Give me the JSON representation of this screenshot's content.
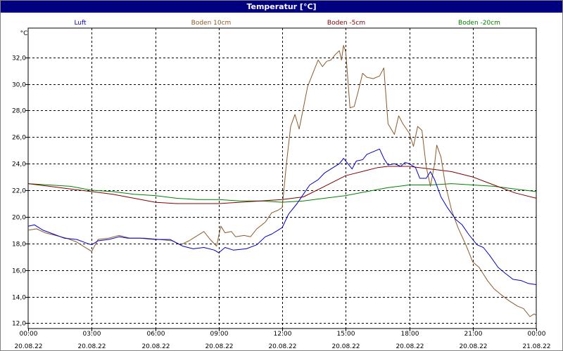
{
  "window": {
    "title": "Temperatur [°C]"
  },
  "chart_data": {
    "type": "line",
    "title": "Temperatur [°C]",
    "ylabel": "°C",
    "ylim": [
      11.6,
      34.2
    ],
    "yticks": [
      "12,0",
      "14,0",
      "16,0",
      "18,0",
      "20,0",
      "22,0",
      "24,0",
      "26,0",
      "28,0",
      "30,0",
      "32,0"
    ],
    "ytick_values": [
      12,
      14,
      16,
      18,
      20,
      22,
      24,
      26,
      28,
      30,
      32
    ],
    "xlim": [
      0,
      24
    ],
    "xticks": [
      {
        "x": 0,
        "time": "00:00",
        "date": "20.08.22"
      },
      {
        "x": 3,
        "time": "03:00",
        "date": "20.08.22"
      },
      {
        "x": 6,
        "time": "06:00",
        "date": "20.08.22"
      },
      {
        "x": 9,
        "time": "09:00",
        "date": "20.08.22"
      },
      {
        "x": 12,
        "time": "12:00",
        "date": "20.08.22"
      },
      {
        "x": 15,
        "time": "15:00",
        "date": "20.08.22"
      },
      {
        "x": 18,
        "time": "18:00",
        "date": "20.08.22"
      },
      {
        "x": 21,
        "time": "21:00",
        "date": "20.08.22"
      },
      {
        "x": 24,
        "time": "00:00",
        "date": "21.08.22"
      }
    ],
    "grid": true,
    "legend_placement": "top",
    "series": [
      {
        "name": "Luft",
        "color": "#0000c0",
        "points": [
          [
            0,
            19.3
          ],
          [
            0.3,
            19.4
          ],
          [
            0.7,
            19.0
          ],
          [
            1.2,
            18.7
          ],
          [
            1.7,
            18.4
          ],
          [
            2.3,
            18.3
          ],
          [
            2.8,
            18.0
          ],
          [
            3.0,
            17.9
          ],
          [
            3.3,
            18.2
          ],
          [
            3.8,
            18.3
          ],
          [
            4.3,
            18.5
          ],
          [
            4.7,
            18.4
          ],
          [
            5.3,
            18.4
          ],
          [
            6.0,
            18.3
          ],
          [
            6.7,
            18.3
          ],
          [
            7.3,
            17.8
          ],
          [
            7.8,
            17.6
          ],
          [
            8.3,
            17.7
          ],
          [
            8.8,
            17.5
          ],
          [
            9.0,
            17.3
          ],
          [
            9.3,
            17.7
          ],
          [
            9.7,
            17.5
          ],
          [
            10.3,
            17.6
          ],
          [
            10.8,
            17.9
          ],
          [
            11.2,
            18.5
          ],
          [
            11.5,
            18.7
          ],
          [
            11.8,
            19.0
          ],
          [
            12.0,
            19.2
          ],
          [
            12.3,
            20.2
          ],
          [
            12.7,
            21.0
          ],
          [
            13.0,
            21.7
          ],
          [
            13.3,
            22.4
          ],
          [
            13.7,
            22.8
          ],
          [
            14.0,
            23.3
          ],
          [
            14.3,
            23.6
          ],
          [
            14.7,
            24.0
          ],
          [
            14.9,
            24.4
          ],
          [
            15.1,
            24.0
          ],
          [
            15.3,
            23.6
          ],
          [
            15.5,
            24.2
          ],
          [
            15.8,
            24.3
          ],
          [
            16.0,
            24.7
          ],
          [
            16.3,
            24.9
          ],
          [
            16.6,
            25.1
          ],
          [
            16.8,
            24.4
          ],
          [
            17.0,
            23.9
          ],
          [
            17.3,
            24.0
          ],
          [
            17.6,
            23.8
          ],
          [
            17.8,
            24.1
          ],
          [
            18.0,
            24.0
          ],
          [
            18.3,
            23.7
          ],
          [
            18.5,
            22.9
          ],
          [
            18.8,
            22.9
          ],
          [
            19.0,
            23.4
          ],
          [
            19.2,
            22.8
          ],
          [
            19.5,
            21.5
          ],
          [
            19.8,
            20.7
          ],
          [
            20.2,
            19.8
          ],
          [
            20.5,
            19.4
          ],
          [
            20.8,
            18.7
          ],
          [
            21.2,
            17.9
          ],
          [
            21.5,
            17.7
          ],
          [
            21.8,
            17.1
          ],
          [
            22.2,
            16.2
          ],
          [
            22.5,
            15.8
          ],
          [
            22.9,
            15.3
          ],
          [
            23.3,
            15.2
          ],
          [
            23.6,
            15.0
          ],
          [
            24.0,
            14.9
          ]
        ]
      },
      {
        "name": "Boden 10cm",
        "color": "#8b5a2b",
        "points": [
          [
            0,
            19.0
          ],
          [
            0.4,
            19.1
          ],
          [
            0.8,
            18.8
          ],
          [
            1.3,
            18.6
          ],
          [
            1.8,
            18.4
          ],
          [
            2.3,
            18.1
          ],
          [
            2.8,
            17.6
          ],
          [
            3.0,
            17.4
          ],
          [
            3.3,
            18.3
          ],
          [
            3.8,
            18.4
          ],
          [
            4.3,
            18.6
          ],
          [
            4.8,
            18.4
          ],
          [
            5.5,
            18.4
          ],
          [
            6.2,
            18.3
          ],
          [
            6.8,
            18.2
          ],
          [
            7.2,
            17.9
          ],
          [
            7.6,
            18.2
          ],
          [
            8.0,
            18.6
          ],
          [
            8.3,
            18.9
          ],
          [
            8.6,
            18.3
          ],
          [
            8.9,
            17.8
          ],
          [
            9.1,
            19.3
          ],
          [
            9.3,
            18.8
          ],
          [
            9.6,
            18.9
          ],
          [
            9.8,
            18.5
          ],
          [
            10.2,
            18.6
          ],
          [
            10.5,
            18.5
          ],
          [
            10.8,
            19.1
          ],
          [
            11.2,
            19.6
          ],
          [
            11.5,
            20.3
          ],
          [
            11.8,
            20.5
          ],
          [
            12.0,
            20.7
          ],
          [
            12.2,
            24.0
          ],
          [
            12.4,
            26.8
          ],
          [
            12.6,
            27.7
          ],
          [
            12.8,
            26.6
          ],
          [
            13.0,
            28.2
          ],
          [
            13.2,
            29.8
          ],
          [
            13.5,
            31.0
          ],
          [
            13.7,
            31.8
          ],
          [
            13.9,
            31.3
          ],
          [
            14.1,
            31.7
          ],
          [
            14.3,
            31.8
          ],
          [
            14.5,
            32.2
          ],
          [
            14.7,
            32.5
          ],
          [
            14.8,
            31.8
          ],
          [
            14.9,
            32.9
          ],
          [
            15.0,
            32.4
          ],
          [
            15.2,
            28.2
          ],
          [
            15.4,
            28.3
          ],
          [
            15.6,
            29.5
          ],
          [
            15.8,
            30.8
          ],
          [
            16.0,
            30.5
          ],
          [
            16.3,
            30.4
          ],
          [
            16.6,
            30.6
          ],
          [
            16.8,
            31.2
          ],
          [
            17.0,
            27.0
          ],
          [
            17.3,
            26.2
          ],
          [
            17.5,
            27.6
          ],
          [
            17.7,
            27.0
          ],
          [
            18.0,
            26.3
          ],
          [
            18.2,
            25.3
          ],
          [
            18.4,
            26.8
          ],
          [
            18.6,
            26.5
          ],
          [
            18.8,
            23.8
          ],
          [
            19.0,
            22.3
          ],
          [
            19.2,
            24.0
          ],
          [
            19.3,
            25.4
          ],
          [
            19.5,
            24.5
          ],
          [
            19.7,
            22.5
          ],
          [
            20.0,
            20.5
          ],
          [
            20.3,
            19.2
          ],
          [
            20.7,
            17.8
          ],
          [
            21.0,
            16.6
          ],
          [
            21.3,
            16.2
          ],
          [
            21.7,
            15.2
          ],
          [
            22.0,
            14.6
          ],
          [
            22.3,
            14.2
          ],
          [
            22.7,
            13.7
          ],
          [
            23.1,
            13.3
          ],
          [
            23.4,
            13.1
          ],
          [
            23.7,
            12.5
          ],
          [
            23.9,
            12.7
          ],
          [
            24.0,
            12.6
          ]
        ]
      },
      {
        "name": "Boden -5cm",
        "color": "#800000",
        "points": [
          [
            0,
            22.5
          ],
          [
            1,
            22.3
          ],
          [
            2,
            22.1
          ],
          [
            3,
            21.9
          ],
          [
            4,
            21.7
          ],
          [
            5,
            21.4
          ],
          [
            6,
            21.1
          ],
          [
            7,
            21.0
          ],
          [
            8,
            21.0
          ],
          [
            9,
            21.0
          ],
          [
            10,
            21.1
          ],
          [
            11,
            21.2
          ],
          [
            12,
            21.3
          ],
          [
            13,
            21.5
          ],
          [
            14,
            22.3
          ],
          [
            15,
            23.1
          ],
          [
            16,
            23.5
          ],
          [
            16.5,
            23.7
          ],
          [
            17,
            23.8
          ],
          [
            18,
            23.8
          ],
          [
            19,
            23.6
          ],
          [
            20,
            23.4
          ],
          [
            21,
            23.0
          ],
          [
            22,
            22.4
          ],
          [
            23,
            21.8
          ],
          [
            24,
            21.4
          ]
        ]
      },
      {
        "name": "Boden -20cm",
        "color": "#008000",
        "points": [
          [
            0,
            22.5
          ],
          [
            2,
            22.3
          ],
          [
            3,
            22.0
          ],
          [
            4,
            21.9
          ],
          [
            5,
            21.7
          ],
          [
            6,
            21.6
          ],
          [
            7,
            21.4
          ],
          [
            8,
            21.3
          ],
          [
            9,
            21.3
          ],
          [
            10,
            21.2
          ],
          [
            11,
            21.2
          ],
          [
            12,
            21.1
          ],
          [
            13,
            21.2
          ],
          [
            14,
            21.4
          ],
          [
            15,
            21.6
          ],
          [
            16,
            21.9
          ],
          [
            17,
            22.2
          ],
          [
            18,
            22.4
          ],
          [
            19,
            22.4
          ],
          [
            20,
            22.5
          ],
          [
            21,
            22.4
          ],
          [
            22,
            22.3
          ],
          [
            23,
            22.1
          ],
          [
            24,
            21.9
          ]
        ]
      }
    ]
  }
}
